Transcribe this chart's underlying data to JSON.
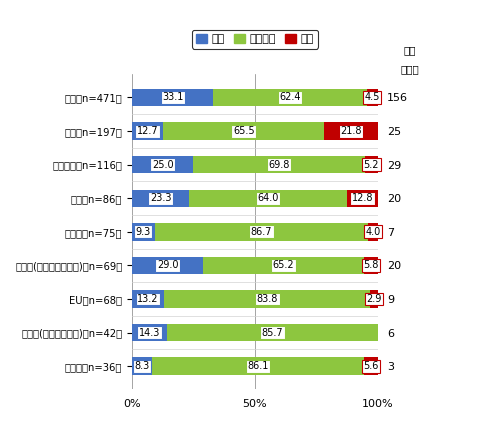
{
  "categories": [
    "米国（n=471）",
    "日本（n=197）",
    "メキシコ（n=116）",
    "中国（n=86）",
    "カナダ（n=75）",
    "アジア(日本と中国除く)（n=69）",
    "EU（n=68）",
    "中南米(メキシコ除く)（n=42）",
    "その他（n=36）"
  ],
  "expand": [
    33.1,
    12.7,
    25.0,
    23.3,
    9.3,
    29.0,
    13.2,
    14.3,
    8.3
  ],
  "maintain": [
    62.4,
    65.5,
    69.8,
    64.0,
    86.7,
    65.2,
    83.8,
    85.7,
    86.1
  ],
  "shrink": [
    4.5,
    21.8,
    5.2,
    12.8,
    4.0,
    5.8,
    2.9,
    0.0,
    5.6
  ],
  "expand_companies": [
    156,
    25,
    29,
    20,
    7,
    20,
    9,
    6,
    3
  ],
  "color_expand": "#4472C4",
  "color_maintain": "#8DC63F",
  "color_shrink": "#C00000",
  "legend_labels": [
    "拡大",
    "現状維持",
    "縮小"
  ],
  "title_right1": "拡大",
  "title_right2": "（社）",
  "bar_height": 0.52,
  "figsize": [
    4.97,
    4.24
  ],
  "dpi": 100
}
